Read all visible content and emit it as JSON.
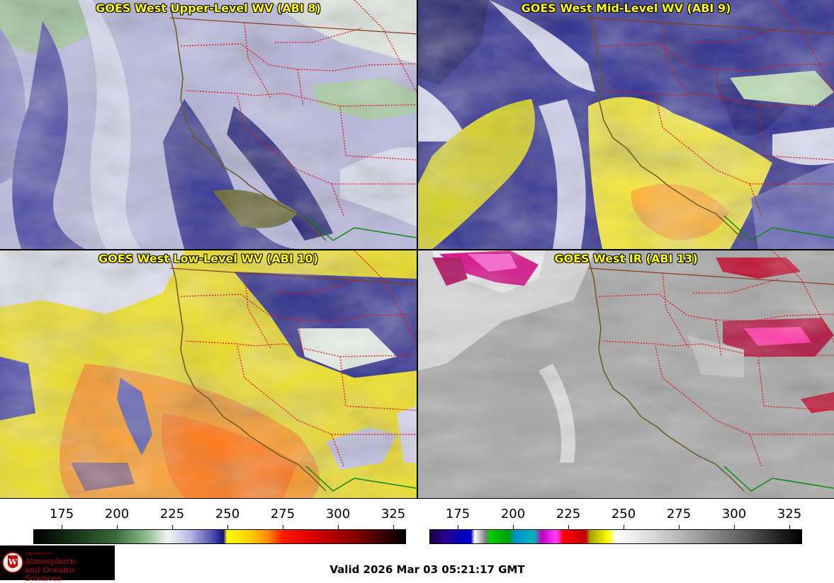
{
  "panels": [
    {
      "title": "GOES West Upper-Level WV (ABI 8)",
      "colormap": "wv"
    },
    {
      "title": "GOES West Mid-Level WV (ABI 9)",
      "colormap": "wv"
    },
    {
      "title": "GOES West Low-Level WV (ABI 10)",
      "colormap": "wv"
    },
    {
      "title": "GOES West IR (ABI 13)",
      "colormap": "ir"
    }
  ],
  "colorbars": [
    {
      "ticks": [
        "175",
        "200",
        "225",
        "250",
        "275",
        "300",
        "325"
      ]
    },
    {
      "ticks": [
        "175",
        "200",
        "225",
        "250",
        "275",
        "300",
        "325"
      ]
    }
  ],
  "logo": {
    "dept": "Department of",
    "line1": "Atmospheric",
    "line2": "and Oceanic Sciences",
    "seal_letter": "W"
  },
  "valid_time": "Valid 2026 Mar 03 05:21:17 GMT",
  "colors": {
    "border_state": "#e01010",
    "coast": "#6b5a1e",
    "mexico_border": "#0a8a0a",
    "title": "#ffff00"
  }
}
